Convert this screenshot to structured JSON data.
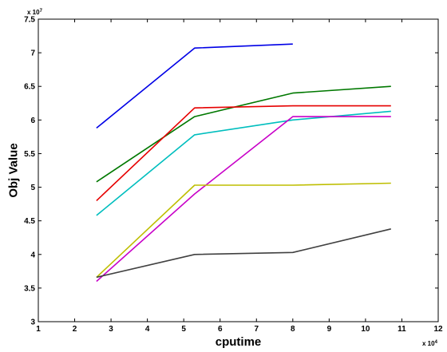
{
  "chart_data": {
    "type": "line",
    "title": "",
    "xlabel": "cputime",
    "ylabel": "Obj Value",
    "x_multiplier_base": "x 10",
    "x_multiplier_exp": "4",
    "y_multiplier_base": "x 10",
    "y_multiplier_exp": "7",
    "xlim": [
      1,
      12
    ],
    "ylim": [
      3,
      7.5
    ],
    "xticks": [
      1,
      2,
      3,
      4,
      5,
      6,
      7,
      8,
      9,
      10,
      11,
      12
    ],
    "yticks": [
      3,
      3.5,
      4,
      4.5,
      5,
      5.5,
      6,
      6.5,
      7,
      7.5
    ],
    "xtick_labels": [
      "1",
      "2",
      "3",
      "4",
      "5",
      "6",
      "7",
      "8",
      "9",
      "10",
      "11",
      "12"
    ],
    "ytick_labels": [
      "3",
      "3.5",
      "4",
      "4.5",
      "5",
      "5.5",
      "6",
      "6.5",
      "7",
      "7.5"
    ],
    "grid": false,
    "legend": "none",
    "series": [
      {
        "color": "#0000e6",
        "x": [
          2.6,
          5.3,
          8.0
        ],
        "y": [
          5.88,
          7.07,
          7.13
        ]
      },
      {
        "color": "#007800",
        "x": [
          2.6,
          5.3,
          8.0,
          10.7
        ],
        "y": [
          5.08,
          6.05,
          6.4,
          6.5
        ]
      },
      {
        "color": "#e60000",
        "x": [
          2.6,
          5.3,
          8.0,
          10.7
        ],
        "y": [
          4.8,
          6.18,
          6.21,
          6.21
        ]
      },
      {
        "color": "#00bebe",
        "x": [
          2.6,
          5.3,
          8.0,
          10.7
        ],
        "y": [
          4.58,
          5.78,
          6.0,
          6.13
        ]
      },
      {
        "color": "#c800c8",
        "x": [
          2.6,
          5.3,
          8.0,
          10.7
        ],
        "y": [
          3.6,
          4.9,
          6.05,
          6.05
        ]
      },
      {
        "color": "#bebe00",
        "x": [
          2.6,
          5.3,
          8.0,
          10.7
        ],
        "y": [
          3.66,
          5.03,
          5.03,
          5.06
        ]
      },
      {
        "color": "#404040",
        "x": [
          2.6,
          5.3,
          8.0,
          10.7
        ],
        "y": [
          3.66,
          4.0,
          4.03,
          4.38
        ]
      }
    ]
  }
}
